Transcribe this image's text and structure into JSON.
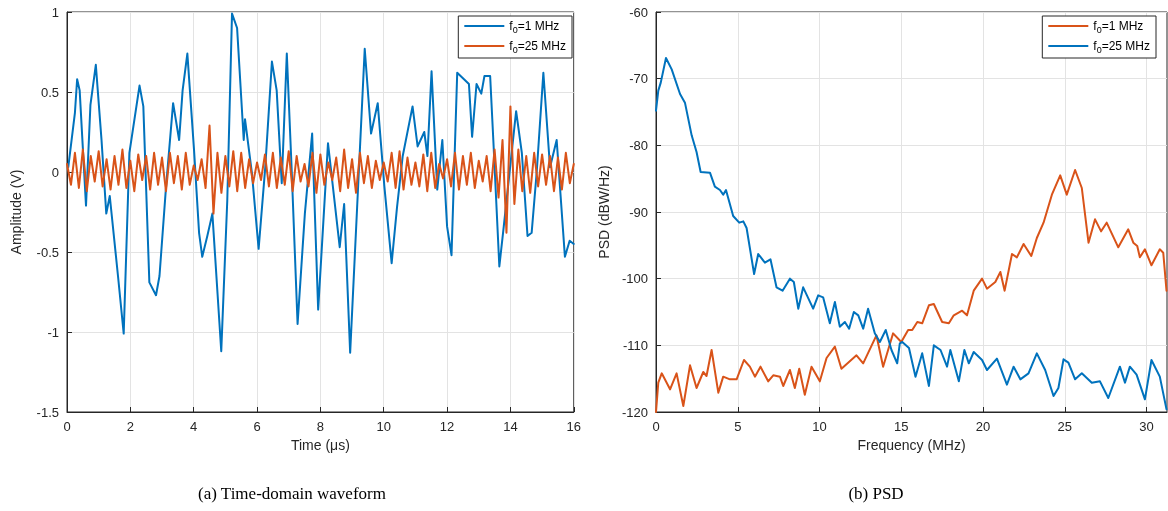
{
  "chart_data": [
    {
      "type": "line",
      "title": "(a) Time-domain waveform",
      "xlabel": "Time (μs)",
      "ylabel": "Amplitude (V)",
      "xlim": [
        0,
        16
      ],
      "xticks": [
        0,
        2,
        4,
        6,
        8,
        10,
        12,
        14,
        16
      ],
      "ylim": [
        -1.5,
        1
      ],
      "yticks": [
        -1.5,
        -1,
        -0.5,
        0,
        0.5,
        1
      ],
      "grid": true,
      "legend": "top right",
      "marker": "none",
      "line_style": "solid",
      "series": [
        {
          "name": "f$_{0}$=1 MHz",
          "color": "#0072bd",
          "x": [
            0.04,
            0.25,
            0.32,
            0.4,
            0.6,
            0.74,
            0.91,
            1.09,
            1.24,
            1.35,
            1.61,
            1.79,
            1.97,
            2.29,
            2.41,
            2.6,
            2.81,
            2.92,
            3.12,
            3.35,
            3.54,
            3.65,
            3.8,
            4.01,
            4.17,
            4.27,
            4.43,
            4.59,
            4.87,
            5.06,
            5.21,
            5.37,
            5.58,
            5.62,
            5.84,
            6.05,
            6.26,
            6.47,
            6.62,
            6.78,
            6.94,
            7.09,
            7.28,
            7.51,
            7.74,
            7.93,
            8.24,
            8.61,
            8.75,
            8.94,
            9.16,
            9.4,
            9.6,
            9.81,
            10.02,
            10.25,
            10.42,
            10.6,
            10.91,
            11.07,
            11.28,
            11.38,
            11.51,
            11.69,
            11.85,
            12.0,
            12.14,
            12.32,
            12.69,
            12.79,
            12.93,
            13.08,
            13.18,
            13.36,
            13.46,
            13.65,
            13.79,
            13.95,
            14.18,
            14.36,
            14.54,
            14.67,
            14.83,
            15.04,
            15.25,
            15.46,
            15.72,
            15.87,
            16.0
          ],
          "values": [
            0.03,
            0.37,
            0.58,
            0.51,
            -0.21,
            0.42,
            0.67,
            0.2,
            -0.26,
            -0.15,
            -0.65,
            -1.01,
            0.12,
            0.54,
            0.41,
            -0.69,
            -0.77,
            -0.65,
            -0.11,
            0.43,
            0.2,
            0.51,
            0.74,
            0.14,
            -0.38,
            -0.53,
            -0.4,
            -0.26,
            -1.12,
            -0.18,
            0.99,
            0.9,
            0.2,
            0.33,
            -0.01,
            -0.48,
            0.03,
            0.69,
            0.51,
            -0.07,
            0.74,
            0.03,
            -0.95,
            -0.26,
            0.24,
            -0.86,
            0.18,
            -0.47,
            -0.2,
            -1.13,
            -0.22,
            0.77,
            0.24,
            0.43,
            -0.09,
            -0.57,
            -0.22,
            0.1,
            0.41,
            0.16,
            0.25,
            0.1,
            0.63,
            -0.11,
            0.2,
            -0.34,
            -0.52,
            0.62,
            0.55,
            0.22,
            0.55,
            0.49,
            0.6,
            0.6,
            0.2,
            -0.59,
            -0.34,
            null,
            0.38,
            0.12,
            -0.4,
            -0.38,
            0.0,
            0.62,
            0.03,
            0.2,
            -0.53,
            -0.43,
            -0.45
          ]
        },
        {
          "name": "f$_{0}$=25 MHz",
          "color": "#d95319",
          "x": [
            0,
            0.125,
            0.25,
            0.375,
            0.5,
            0.625,
            0.75,
            0.875,
            1,
            1.125,
            1.25,
            1.375,
            1.5,
            1.625,
            1.75,
            1.875,
            2,
            2.125,
            2.25,
            2.375,
            2.5,
            2.625,
            2.75,
            2.875,
            3,
            3.125,
            3.25,
            3.375,
            3.5,
            3.625,
            3.75,
            3.875,
            4,
            4.125,
            4.25,
            4.375,
            4.5,
            4.625,
            4.75,
            4.875,
            5,
            5.125,
            5.25,
            5.375,
            5.5,
            5.625,
            5.75,
            5.875,
            6,
            6.125,
            6.25,
            6.375,
            6.5,
            6.625,
            6.75,
            6.875,
            7,
            7.125,
            7.25,
            7.375,
            7.5,
            7.625,
            7.75,
            7.875,
            8,
            8.125,
            8.25,
            8.375,
            8.5,
            8.625,
            8.75,
            8.875,
            9,
            9.125,
            9.25,
            9.375,
            9.5,
            9.625,
            9.75,
            9.875,
            10,
            10.125,
            10.25,
            10.375,
            10.5,
            10.625,
            10.75,
            10.875,
            11,
            11.125,
            11.25,
            11.375,
            11.5,
            11.625,
            11.75,
            11.875,
            12,
            12.125,
            12.25,
            12.375,
            12.5,
            12.625,
            12.75,
            12.875,
            13,
            13.125,
            13.25,
            13.375,
            13.5,
            13.625,
            13.75,
            13.875,
            14,
            14.125,
            14.25,
            14.375,
            14.5,
            14.625,
            14.75,
            14.875,
            15,
            15.125,
            15.25,
            15.375,
            15.5,
            15.625,
            15.75,
            15.875,
            16
          ],
          "values": [
            0.05,
            -0.08,
            0.12,
            -0.1,
            0.14,
            -0.12,
            0.1,
            -0.06,
            0.13,
            -0.09,
            0.08,
            -0.11,
            0.1,
            -0.08,
            0.14,
            -0.1,
            0.07,
            -0.12,
            0.11,
            -0.05,
            0.1,
            -0.11,
            0.12,
            -0.08,
            0.09,
            -0.12,
            0.12,
            -0.07,
            0.1,
            -0.11,
            0.12,
            -0.08,
            0.04,
            -0.05,
            0.08,
            -0.1,
            0.29,
            -0.26,
            0.12,
            -0.13,
            0.1,
            -0.09,
            0.13,
            -0.12,
            0.12,
            -0.1,
            0.08,
            -0.07,
            0.06,
            -0.05,
            0.11,
            -0.09,
            0.12,
            -0.1,
            0.09,
            -0.08,
            0.13,
            -0.12,
            0.1,
            -0.06,
            0.05,
            -0.09,
            0.12,
            -0.13,
            0.11,
            -0.08,
            0.06,
            -0.05,
            0.09,
            -0.12,
            0.14,
            -0.1,
            0.08,
            -0.13,
            0.12,
            -0.07,
            0.1,
            -0.1,
            0.07,
            -0.05,
            0.06,
            -0.06,
            0.12,
            -0.1,
            0.13,
            -0.11,
            0.09,
            -0.08,
            0.06,
            -0.09,
            0.11,
            -0.12,
            0.12,
            -0.1,
            0.05,
            -0.04,
            0.08,
            -0.09,
            0.12,
            -0.11,
            0.1,
            -0.08,
            0.12,
            -0.1,
            0.07,
            -0.06,
            0.1,
            -0.12,
            0.14,
            -0.16,
            0.2,
            -0.38,
            0.41,
            -0.2,
            0.14,
            -0.12,
            0.1,
            -0.13,
            0.12,
            -0.09,
            0.11,
            -0.08,
            0.1,
            -0.12,
            0.09,
            -0.11,
            0.12,
            -0.07,
            0.05
          ]
        }
      ]
    },
    {
      "type": "line",
      "title": "(b) PSD",
      "xlabel": "Frequency (MHz)",
      "ylabel": "PSD (dBW/Hz)",
      "xlim": [
        0,
        31.25
      ],
      "xticks": [
        0,
        5,
        10,
        15,
        20,
        25,
        30
      ],
      "ylim": [
        -120,
        -60
      ],
      "yticks": [
        -120,
        -110,
        -100,
        -90,
        -80,
        -70,
        -60
      ],
      "grid": true,
      "legend": "top right",
      "marker": "none",
      "line_style": "solid",
      "series": [
        {
          "name": "f$_{0}$=1 MHz",
          "color": "#d95319",
          "x": [
            0,
            0.14,
            0.35,
            0.86,
            1.26,
            1.67,
            2.08,
            2.48,
            2.89,
            3.09,
            3.4,
            3.81,
            4.11,
            4.52,
            4.93,
            5.38,
            5.74,
            6.05,
            6.39,
            6.86,
            7.17,
            7.58,
            7.78,
            8.19,
            8.49,
            8.76,
            9.1,
            9.51,
            10.02,
            10.43,
            10.94,
            11.34,
            11.75,
            12.26,
            12.67,
            13.48,
            13.89,
            14.5,
            15.0,
            15.42,
            15.67,
            15.98,
            16.28,
            16.69,
            16.99,
            17.5,
            17.91,
            18.21,
            18.72,
            19.02,
            19.43,
            19.94,
            20.24,
            20.75,
            21.06,
            21.32,
            21.77,
            22.07,
            22.48,
            22.95,
            23.29,
            23.7,
            24.21,
            24.72,
            25.12,
            25.63,
            26.04,
            26.45,
            26.85,
            27.22,
            27.56,
            28.27,
            28.88,
            29.19,
            29.43,
            29.59,
            29.9,
            30.3,
            30.81,
            31.02,
            31.22
          ],
          "values": [
            -120,
            -115.6,
            -114.2,
            -116.6,
            -114.2,
            -119.1,
            -113,
            -116.4,
            -114,
            -114.6,
            -110.7,
            -117.1,
            -114.7,
            -115.1,
            -115.1,
            -112.2,
            -113.2,
            -114.7,
            -113.2,
            -115.4,
            -114.5,
            -114.7,
            -116.1,
            -113.7,
            -116.4,
            -113.5,
            -117.4,
            -113.2,
            -115.4,
            -111.9,
            -110.2,
            -113.5,
            -112.6,
            -111.5,
            -112.7,
            -108.5,
            -113.2,
            -108.2,
            -109.5,
            -107.7,
            -107.7,
            -106.5,
            -106.7,
            -104,
            -103.8,
            -106.5,
            -106.7,
            -105.5,
            -104.8,
            -105.5,
            -101.8,
            -100,
            -101.5,
            -100.5,
            -99,
            -101.8,
            -96.3,
            -96.8,
            -94.8,
            -96.6,
            -93.9,
            -91.6,
            -87.4,
            -84.5,
            -87.4,
            -83.7,
            -86.4,
            -94.6,
            -91.1,
            -92.9,
            -91.6,
            -95.3,
            -92.6,
            -94.6,
            -95.1,
            -96.8,
            -95.6,
            -98,
            -95.6,
            -96.1,
            -101.8
          ]
        },
        {
          "name": "f$_{0}$=25 MHz",
          "color": "#0072bd",
          "x": [
            0,
            0.14,
            0.29,
            0.61,
            0.96,
            1.47,
            1.77,
            2.18,
            2.48,
            2.73,
            3.3,
            3.6,
            3.91,
            4.11,
            4.28,
            4.72,
            5.09,
            5.34,
            5.54,
            6.0,
            6.25,
            6.66,
            7.0,
            7.37,
            7.74,
            8.19,
            8.43,
            8.7,
            9.0,
            9.61,
            9.92,
            10.22,
            10.63,
            10.94,
            11.24,
            11.55,
            11.81,
            12.1,
            12.37,
            12.67,
            12.97,
            13.38,
            13.69,
            14.05,
            14.4,
            14.75,
            14.91,
            15.06,
            15.47,
            15.87,
            16.28,
            16.69,
            16.99,
            17.4,
            17.8,
            18.0,
            18.52,
            18.86,
            19.13,
            19.43,
            19.94,
            20.24,
            20.85,
            21.46,
            21.87,
            22.28,
            22.78,
            23.29,
            23.8,
            24.31,
            24.61,
            24.92,
            25.22,
            25.63,
            26.04,
            26.65,
            27.15,
            27.66,
            28.37,
            28.68,
            28.98,
            29.39,
            29.9,
            30.3,
            30.81,
            31.22
          ],
          "values": [
            -74.8,
            -71.8,
            -70.6,
            -66.9,
            -68.6,
            -72.3,
            -73.6,
            -78.5,
            -81,
            -84,
            -84.1,
            -86.2,
            -86.7,
            -87.4,
            -86.7,
            -90.6,
            -91.6,
            -91.4,
            -92.4,
            -99.3,
            -96.3,
            -97.6,
            -97.1,
            -101.3,
            -101.8,
            -100,
            -100.5,
            -104.5,
            -101.3,
            -104.5,
            -102.5,
            -102.8,
            -106.7,
            -103.5,
            -107.2,
            -106.5,
            -107.5,
            -105,
            -105.5,
            -107.5,
            -104.5,
            -108.2,
            -109.5,
            -107.7,
            -110.7,
            -112.7,
            -109.7,
            -109.5,
            -110.4,
            -114.7,
            -111.2,
            -116.1,
            -110,
            -110.7,
            -113.2,
            -110.7,
            -115.4,
            -110.7,
            -112.7,
            -111,
            -112.2,
            -113.7,
            -112,
            -115.9,
            -113.2,
            -115.1,
            -114.2,
            -111.2,
            -113.7,
            -117.6,
            -116.4,
            -112.1,
            -112.6,
            -115.1,
            -114.2,
            -115.6,
            -115.4,
            -117.9,
            -113.2,
            -115.6,
            -113.2,
            -114.4,
            -118.1,
            -112.2,
            -114.7,
            -119.6
          ]
        }
      ]
    }
  ]
}
